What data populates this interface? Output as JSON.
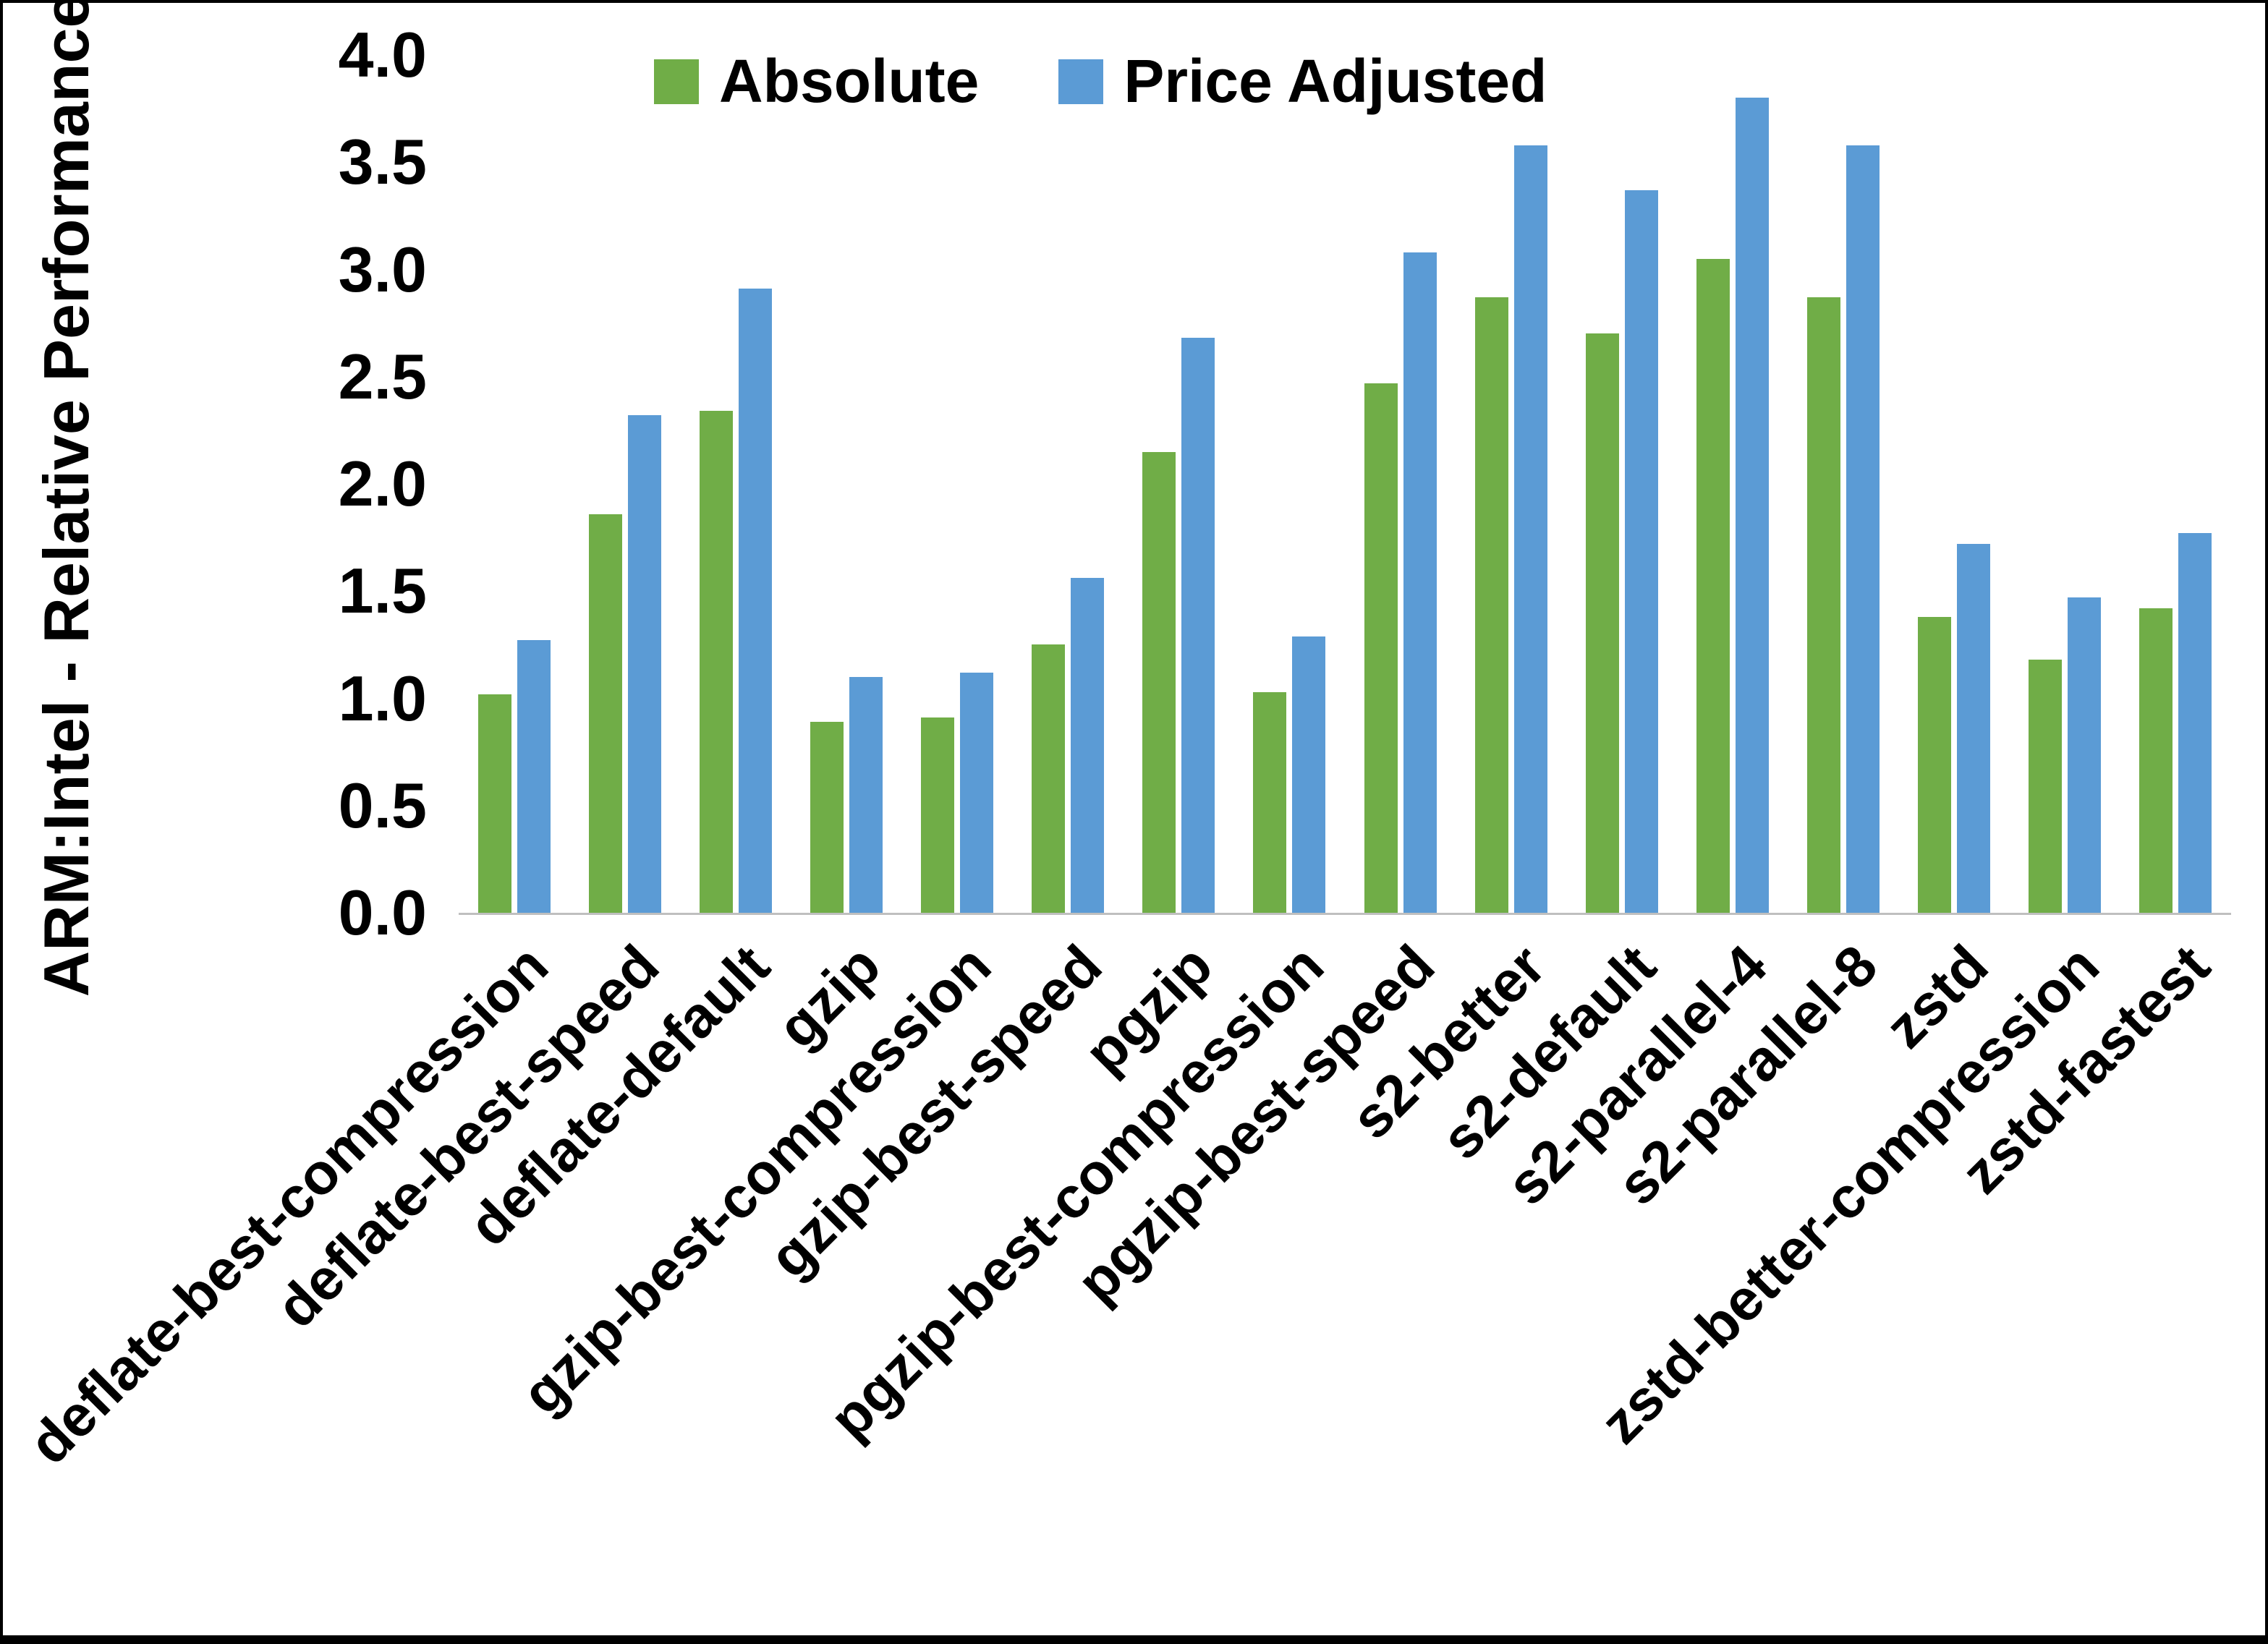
{
  "chart_data": {
    "type": "bar",
    "title": "",
    "xlabel": "",
    "ylabel": "ARM:Intel - Relative Performance",
    "ylim": [
      0,
      4.0
    ],
    "ytick_step": 0.5,
    "yticks": [
      "0.0",
      "0.5",
      "1.0",
      "1.5",
      "2.0",
      "2.5",
      "3.0",
      "3.5",
      "4.0"
    ],
    "grid": false,
    "legend_position": "top-center",
    "categories": [
      "deflate-best-compression",
      "deflate-best-speed",
      "deflate-default",
      "gzip",
      "gzip-best-compression",
      "gzip-best-speed",
      "pgzip",
      "pgzip-best-compression",
      "pgzip-best-speed",
      "s2-better",
      "s2-default",
      "s2-parallel-4",
      "s2-parallel-8",
      "zstd",
      "zstd-better-compression",
      "zstd-fastest"
    ],
    "series": [
      {
        "name": "Absolute",
        "color": "#70AD47",
        "values": [
          1.02,
          1.86,
          2.34,
          0.89,
          0.91,
          1.25,
          2.15,
          1.03,
          2.47,
          2.87,
          2.7,
          3.05,
          2.87,
          1.38,
          1.18,
          1.42
        ]
      },
      {
        "name": "Price Adjusted",
        "color": "#5B9BD5",
        "values": [
          1.27,
          2.32,
          2.91,
          1.1,
          1.12,
          1.56,
          2.68,
          1.29,
          3.08,
          3.58,
          3.37,
          3.8,
          3.58,
          1.72,
          1.47,
          1.77
        ]
      }
    ]
  },
  "colors": {
    "background": "#FFFFFF",
    "border": "#000000",
    "axis_line": "#BFBFBF",
    "text": "#000000",
    "series_absolute": "#70AD47",
    "series_price_adjusted": "#5B9BD5"
  }
}
